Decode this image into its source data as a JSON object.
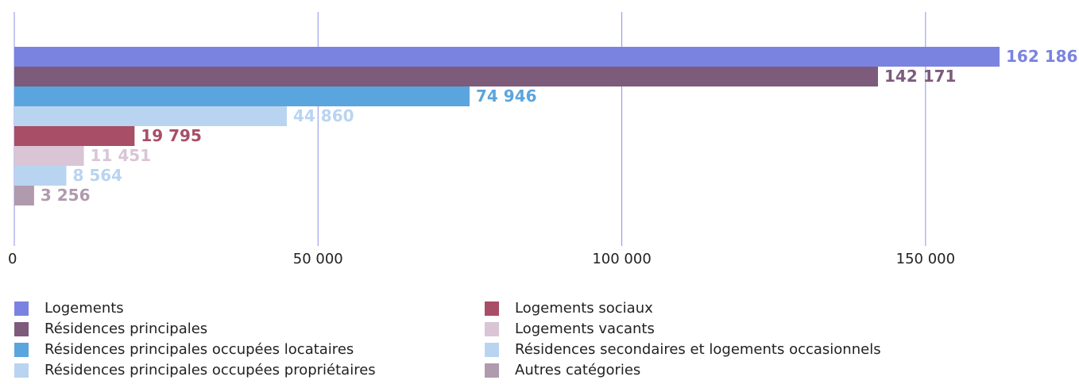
{
  "chart_data": {
    "type": "bar",
    "orientation": "horizontal",
    "series": [
      {
        "name": "Logements",
        "color": "#7b83e0",
        "values": [
          162186
        ],
        "value_labels": [
          "162 186"
        ]
      },
      {
        "name": "Résidences principales",
        "color": "#7d5b7b",
        "values": [
          142171
        ],
        "value_labels": [
          "142 171"
        ]
      },
      {
        "name": "Résidences principales occupées locataires",
        "color": "#5aa5de",
        "values": [
          74946
        ],
        "value_labels": [
          "74 946"
        ]
      },
      {
        "name": "Résidences principales occupées propriétaires",
        "color": "#b9d4f0",
        "values": [
          44860
        ],
        "value_labels": [
          "44 860"
        ]
      },
      {
        "name": "Logements sociaux",
        "color": "#a84e66",
        "values": [
          19795
        ],
        "value_labels": [
          "19 795"
        ]
      },
      {
        "name": "Logements vacants",
        "color": "#d9c5d6",
        "values": [
          11451
        ],
        "value_labels": [
          "11 451"
        ]
      },
      {
        "name": "Résidences secondaires et logements occasionnels",
        "color": "#b9d4f0",
        "values": [
          8564
        ],
        "value_labels": [
          "8 564"
        ]
      },
      {
        "name": "Autres catégories",
        "color": "#b09aae",
        "values": [
          3256
        ],
        "value_labels": [
          "3 256"
        ]
      }
    ],
    "xlim": [
      0,
      175000
    ],
    "xticks": [
      0,
      {
        "value": 50000,
        "label": "50 000"
      },
      {
        "value": 100000,
        "label": "100 000"
      },
      {
        "value": 150000,
        "label": "150 000"
      }
    ],
    "grid": true
  }
}
